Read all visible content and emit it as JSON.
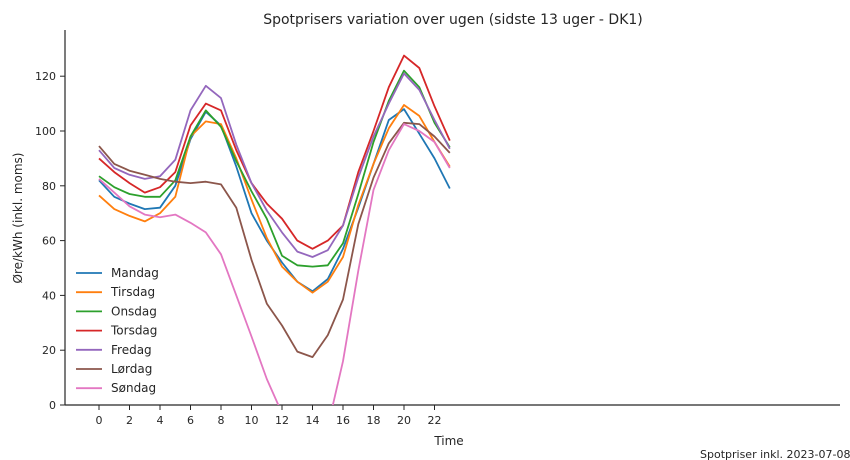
{
  "chart_data": {
    "type": "line",
    "title": "Spotprisers variation over ugen (sidste 13 uger - DK1)",
    "xlabel": "Time",
    "ylabel": "Øre/kWh (inkl. moms)",
    "footnote": "Spotpriser inkl. 2023-07-08",
    "xlim": [
      -1,
      24
    ],
    "ylim": [
      0,
      135
    ],
    "xticks": [
      0,
      2,
      4,
      6,
      8,
      10,
      12,
      14,
      16,
      18,
      20,
      22
    ],
    "yticks": [
      0,
      20,
      40,
      60,
      80,
      100,
      120
    ],
    "grid": false,
    "legend": "left",
    "x": [
      0,
      1,
      2,
      3,
      4,
      5,
      6,
      7,
      8,
      9,
      10,
      11,
      12,
      13,
      14,
      15,
      16,
      17,
      18,
      19,
      20,
      21,
      22,
      23
    ],
    "series": [
      {
        "name": "Mandag",
        "color": "#1f77b4",
        "values": [
          82,
          76,
          73.5,
          71.5,
          72,
          80,
          97,
          107,
          102,
          87,
          70,
          60,
          52,
          45,
          41.5,
          46,
          57,
          72,
          88,
          104,
          108,
          99,
          90,
          79
        ]
      },
      {
        "name": "Tirsdag",
        "color": "#ff7f0e",
        "values": [
          76.5,
          71.5,
          69,
          67,
          70,
          76,
          98,
          103.5,
          102.5,
          90,
          75,
          61,
          50.5,
          45,
          41,
          45,
          54,
          73,
          88,
          101,
          109.5,
          105.5,
          96,
          87
        ]
      },
      {
        "name": "Onsdag",
        "color": "#2ca02c",
        "values": [
          83.5,
          79.5,
          77,
          76,
          76,
          82,
          98,
          107.5,
          101.5,
          89,
          78,
          68,
          54.5,
          51,
          50.5,
          51,
          59,
          77,
          96,
          111,
          122,
          116,
          103,
          94
        ]
      },
      {
        "name": "Torsdag",
        "color": "#d62728",
        "values": [
          90,
          85,
          81,
          77.5,
          79.5,
          85,
          102,
          110,
          107.5,
          93,
          81,
          73.5,
          68,
          60,
          57,
          60,
          65.5,
          85,
          100,
          116,
          127.5,
          123,
          109,
          96.5
        ]
      },
      {
        "name": "Fredag",
        "color": "#9467bd",
        "values": [
          93,
          86.5,
          84,
          82.5,
          83.5,
          89.5,
          107.5,
          116.5,
          112,
          95,
          81,
          71,
          63,
          56,
          54,
          56.5,
          65.5,
          83,
          98,
          110,
          121,
          115,
          104,
          93.5
        ]
      },
      {
        "name": "Lørdag",
        "color": "#8c564b",
        "values": [
          94.5,
          88,
          85.5,
          84,
          82.5,
          81.5,
          81,
          81.5,
          80.5,
          72,
          53,
          37,
          29,
          19.5,
          17.5,
          25.5,
          38.5,
          66,
          83,
          95.5,
          103,
          102.5,
          98,
          92
        ]
      },
      {
        "name": "Søndag",
        "color": "#e377c2",
        "values": [
          82.5,
          77.5,
          72.5,
          69.5,
          68.5,
          69.5,
          66.5,
          63,
          55,
          40,
          25,
          9.5,
          -3,
          -15,
          -16,
          -8,
          16,
          49,
          78.5,
          93,
          102.5,
          100,
          96,
          86.5
        ]
      }
    ]
  }
}
